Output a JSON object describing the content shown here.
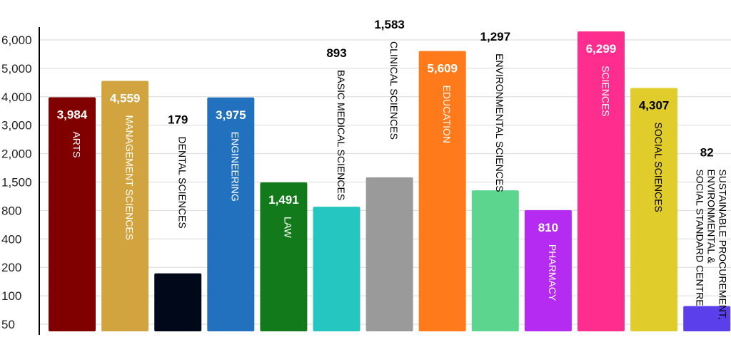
{
  "chart_data": {
    "type": "bar",
    "title": "",
    "xlabel": "",
    "ylabel": "",
    "grid": true,
    "legend": "none",
    "y_scale": "non-linear (ticks evenly spaced)",
    "y_ticks": [
      {
        "label": "50",
        "value": 50
      },
      {
        "label": "100",
        "value": 100
      },
      {
        "label": "200",
        "value": 200
      },
      {
        "label": "400",
        "value": 400
      },
      {
        "label": "800",
        "value": 800
      },
      {
        "label": "1,500",
        "value": 1500
      },
      {
        "label": "2,000",
        "value": 2000
      },
      {
        "label": "3,000",
        "value": 3000
      },
      {
        "label": "4,000",
        "value": 4000
      },
      {
        "label": "5,000",
        "value": 5000
      },
      {
        "label": "6,000",
        "value": 6000
      }
    ],
    "categories": [
      {
        "lines": [
          "ARTS"
        ],
        "value": 3984,
        "value_label": "3,984",
        "color": "#800000",
        "label_pos": "inside",
        "text_color": "#ffffff"
      },
      {
        "lines": [
          "MANAGEMENT SCIENCES"
        ],
        "value": 4559,
        "value_label": "4,559",
        "color": "#D1A43F",
        "label_pos": "inside",
        "text_color": "#ffffff"
      },
      {
        "lines": [
          "DENTAL SCIENCES"
        ],
        "value": 179,
        "value_label": "179",
        "color": "#00081A",
        "label_pos": "above",
        "text_color": "#000000"
      },
      {
        "lines": [
          "ENGINEERING"
        ],
        "value": 3975,
        "value_label": "3,975",
        "color": "#2171BF",
        "label_pos": "inside",
        "text_color": "#ffffff"
      },
      {
        "lines": [
          "LAW"
        ],
        "value": 1491,
        "value_label": "1,491",
        "color": "#127A1A",
        "label_pos": "inside",
        "text_color": "#ffffff"
      },
      {
        "lines": [
          "BASIC MEDICAL SCIENCES"
        ],
        "value": 893,
        "value_label": "893",
        "color": "#25C6C0",
        "label_pos": "above",
        "text_color": "#000000"
      },
      {
        "lines": [
          "CLINICAL SCIENCES"
        ],
        "value": 1583,
        "value_label": "1,583",
        "color": "#9A9A9A",
        "label_pos": "above",
        "text_color": "#000000"
      },
      {
        "lines": [
          "EDUCATION"
        ],
        "value": 5609,
        "value_label": "5,609",
        "color": "#FF7A1A",
        "label_pos": "inside",
        "text_color": "#ffffff"
      },
      {
        "lines": [
          "ENVIRONMENTAL SCIENCES"
        ],
        "value": 1297,
        "value_label": "1,297",
        "color": "#5CD68F",
        "label_pos": "above",
        "text_color": "#000000"
      },
      {
        "lines": [
          "PHARMACY"
        ],
        "value": 810,
        "value_label": "810",
        "color": "#B62BF2",
        "label_pos": "inside",
        "text_color": "#ffffff"
      },
      {
        "lines": [
          "SCIENCES"
        ],
        "value": 6299,
        "value_label": "6,299",
        "color": "#FF2D8E",
        "label_pos": "inside",
        "text_color": "#ffffff"
      },
      {
        "lines": [
          "SOCIAL SCIENCES"
        ],
        "value": 4307,
        "value_label": "4,307",
        "color": "#E0CD2C",
        "label_pos": "inside",
        "text_color": "#000000"
      },
      {
        "lines": [
          "SUSTAINABLE PROCUREMENT,",
          "ENVIRONMENTAL &",
          "SOCIAL STANDARD CENTRE"
        ],
        "value": 82,
        "value_label": "82",
        "color": "#5B3FEB",
        "label_pos": "above",
        "text_color": "#000000"
      }
    ]
  }
}
